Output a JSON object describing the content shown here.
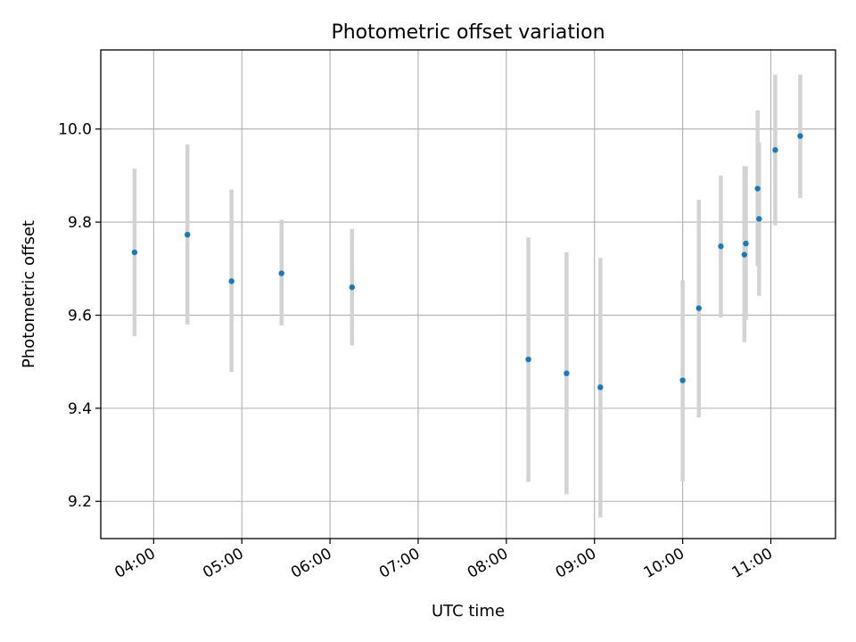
{
  "chart_data": {
    "type": "scatter",
    "title": "Photometric offset variation",
    "xlabel": "UTC time",
    "ylabel": "Photometric offset",
    "x_ticks": [
      "04:00",
      "05:00",
      "06:00",
      "07:00",
      "08:00",
      "09:00",
      "10:00",
      "11:00"
    ],
    "y_ticks": [
      "9.2",
      "9.4",
      "9.6",
      "9.8",
      "10.0"
    ],
    "xlim": [
      "03:24",
      "11:44"
    ],
    "ylim": [
      9.12,
      10.17
    ],
    "grid": true,
    "marker_color": "#1f77b4",
    "errorbar_color": "#d3d3d3",
    "points": [
      {
        "x": "03:47",
        "y": 9.735,
        "ylow": 9.555,
        "yhigh": 9.915
      },
      {
        "x": "04:23",
        "y": 9.773,
        "ylow": 9.58,
        "yhigh": 9.967
      },
      {
        "x": "04:53",
        "y": 9.673,
        "ylow": 9.478,
        "yhigh": 9.87
      },
      {
        "x": "05:27",
        "y": 9.69,
        "ylow": 9.578,
        "yhigh": 9.805
      },
      {
        "x": "06:15",
        "y": 9.66,
        "ylow": 9.535,
        "yhigh": 9.785
      },
      {
        "x": "08:15",
        "y": 9.505,
        "ylow": 9.242,
        "yhigh": 9.767
      },
      {
        "x": "08:41",
        "y": 9.475,
        "ylow": 9.215,
        "yhigh": 9.735
      },
      {
        "x": "09:04",
        "y": 9.445,
        "ylow": 9.165,
        "yhigh": 9.723
      },
      {
        "x": "10:00",
        "y": 9.46,
        "ylow": 9.243,
        "yhigh": 9.675
      },
      {
        "x": "10:11",
        "y": 9.615,
        "ylow": 9.38,
        "yhigh": 9.848
      },
      {
        "x": "10:26",
        "y": 9.748,
        "ylow": 9.595,
        "yhigh": 9.9
      },
      {
        "x": "10:42",
        "y": 9.73,
        "ylow": 9.542,
        "yhigh": 9.92
      },
      {
        "x": "10:43",
        "y": 9.754,
        "ylow": 9.59,
        "yhigh": 9.92
      },
      {
        "x": "10:51",
        "y": 9.872,
        "ylow": 9.705,
        "yhigh": 10.04
      },
      {
        "x": "10:52",
        "y": 9.807,
        "ylow": 9.642,
        "yhigh": 9.972
      },
      {
        "x": "11:03",
        "y": 9.955,
        "ylow": 9.793,
        "yhigh": 10.117
      },
      {
        "x": "11:20",
        "y": 9.985,
        "ylow": 9.852,
        "yhigh": 10.117
      }
    ]
  }
}
